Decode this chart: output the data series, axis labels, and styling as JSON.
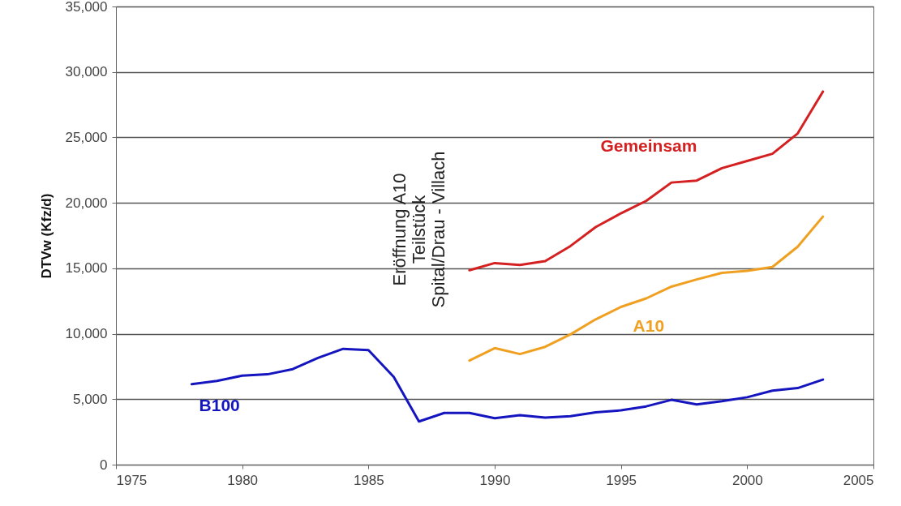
{
  "chart_data": {
    "type": "line",
    "ylabel": "DTVw (Kfz/d)",
    "xlim": [
      1975,
      2005
    ],
    "xticks": [
      1975,
      1980,
      1985,
      1990,
      1995,
      2000,
      2005
    ],
    "ylim": [
      0,
      35000
    ],
    "yticks": [
      0,
      {
        "value": 5000,
        "label": "5,000"
      },
      {
        "value": 10000,
        "label": "10,000"
      },
      {
        "value": 15000,
        "label": "15,000"
      },
      {
        "value": 20000,
        "label": "20,000"
      },
      {
        "value": 25000,
        "label": "25,000"
      },
      {
        "value": 30000,
        "label": "30,000"
      },
      {
        "value": 35000,
        "label": "35,000"
      }
    ],
    "grid": "y",
    "line_style": "solid",
    "marker": "none",
    "annotations": [
      "Eröffnung A10\nTeilstück\nSpital/Drau - Villach"
    ],
    "series": [
      {
        "name": "B100",
        "color": "#1515c0",
        "x": [
          1978,
          1979,
          1980,
          1981,
          1982,
          1983,
          1984,
          1985,
          1986,
          1987,
          1988,
          1989,
          1990,
          1991,
          1992,
          1993,
          1994,
          1995,
          1996,
          1997,
          1998,
          1999,
          2000,
          2001,
          2002,
          2003
        ],
        "values": [
          6150,
          6400,
          6800,
          6900,
          7300,
          8150,
          8850,
          8750,
          6700,
          3300,
          3950,
          3950,
          3550,
          3780,
          3600,
          3700,
          4000,
          4150,
          4450,
          4950,
          4600,
          4850,
          5150,
          5650,
          5850,
          6500
        ]
      },
      {
        "name": "A10",
        "color": "#f0a020",
        "x": [
          1989,
          1990,
          1991,
          1992,
          1993,
          1994,
          1995,
          1996,
          1997,
          1998,
          1999,
          2000,
          2001,
          2002,
          2003
        ],
        "values": [
          7950,
          8900,
          8450,
          9000,
          9950,
          11100,
          12050,
          12700,
          13600,
          14150,
          14650,
          14800,
          15100,
          16650,
          18950
        ]
      },
      {
        "name": "Gemeinsam",
        "color": "#d42020",
        "x": [
          1989,
          1990,
          1991,
          1992,
          1993,
          1994,
          1995,
          1996,
          1997,
          1998,
          1999,
          2000,
          2001,
          2002,
          2003
        ],
        "values": [
          14850,
          15400,
          15250,
          15550,
          16700,
          18150,
          19200,
          20150,
          21550,
          21700,
          22650,
          23200,
          23750,
          25300,
          28500
        ]
      }
    ]
  }
}
